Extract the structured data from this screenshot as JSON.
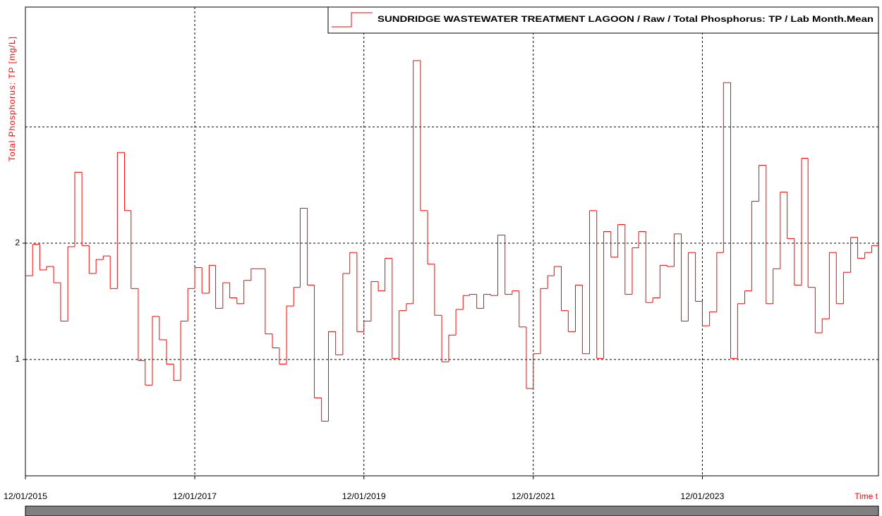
{
  "chart_data": {
    "type": "step",
    "y_label": "Total Phosphorus: TP [mg/L]",
    "x_label": "Time t",
    "x": [
      "2015-12-01",
      "2016-01-01",
      "2016-02-01",
      "2016-03-01",
      "2016-04-01",
      "2016-05-01",
      "2016-06-01",
      "2016-07-01",
      "2016-08-01",
      "2016-09-01",
      "2016-10-01",
      "2016-11-01",
      "2016-12-01",
      "2017-01-01",
      "2017-02-01",
      "2017-03-01",
      "2017-04-01",
      "2017-05-01",
      "2017-06-01",
      "2017-07-01",
      "2017-08-01",
      "2017-09-01",
      "2017-10-01",
      "2017-11-01",
      "2017-12-01",
      "2018-01-01",
      "2018-02-01",
      "2018-03-01",
      "2018-04-01",
      "2018-05-01",
      "2018-06-01",
      "2018-07-01",
      "2018-08-01",
      "2018-09-01",
      "2018-10-01",
      "2018-11-01",
      "2018-12-01",
      "2019-01-01",
      "2019-02-01",
      "2019-03-01",
      "2019-04-01",
      "2019-05-01",
      "2019-06-01",
      "2019-07-01",
      "2019-08-01",
      "2019-09-01",
      "2019-10-01",
      "2019-11-01",
      "2019-12-01",
      "2020-01-01",
      "2020-02-01",
      "2020-03-01",
      "2020-04-01",
      "2020-05-01",
      "2020-06-01",
      "2020-07-01",
      "2020-08-01",
      "2020-09-01",
      "2020-10-01",
      "2020-11-01",
      "2020-12-01",
      "2021-01-01",
      "2021-02-01",
      "2021-03-01",
      "2021-04-01",
      "2021-05-01",
      "2021-06-01",
      "2021-07-01",
      "2021-08-01",
      "2021-09-01",
      "2021-10-01",
      "2021-11-01",
      "2021-12-01",
      "2022-01-01",
      "2022-02-01",
      "2022-03-01",
      "2022-04-01",
      "2022-05-01",
      "2022-06-01",
      "2022-07-01",
      "2022-08-01",
      "2022-09-01",
      "2022-10-01",
      "2022-11-01",
      "2022-12-01",
      "2023-01-01",
      "2023-02-01",
      "2023-03-01",
      "2023-04-01",
      "2023-05-01",
      "2023-06-01",
      "2023-07-01",
      "2023-08-01",
      "2023-09-01",
      "2023-10-01",
      "2023-11-01",
      "2023-12-01",
      "2024-01-01",
      "2024-02-01",
      "2024-03-01",
      "2024-04-01",
      "2024-05-01",
      "2024-06-01",
      "2024-07-01",
      "2024-08-01",
      "2024-09-01",
      "2024-10-01",
      "2024-11-01",
      "2024-12-01",
      "2025-01-01",
      "2025-02-01",
      "2025-03-01",
      "2025-04-01",
      "2025-05-01",
      "2025-06-01",
      "2025-07-01",
      "2025-08-01",
      "2025-09-01",
      "2025-10-01",
      "2025-11-01",
      "2025-12-01"
    ],
    "series": [
      {
        "name": "SUNDRIDGE WASTEWATER TREATMENT LAGOON / Raw / Total Phosphorus: TP / Lab Month.Mean",
        "color": "#ff0000",
        "values": [
          1.72,
          1.99,
          1.77,
          1.8,
          1.66,
          1.33,
          1.97,
          2.61,
          1.98,
          1.74,
          1.86,
          1.89,
          1.61,
          2.78,
          2.28,
          1.61,
          0.99,
          0.78,
          1.37,
          1.17,
          0.96,
          0.82,
          1.33,
          1.61,
          1.79,
          1.57,
          1.81,
          1.44,
          1.66,
          1.53,
          1.48,
          1.68,
          1.78,
          1.78,
          1.22,
          1.1,
          0.96,
          1.46,
          1.62,
          2.3,
          1.64,
          0.67,
          0.47,
          1.24,
          1.04,
          1.74,
          1.92,
          1.24,
          1.33,
          1.67,
          1.59,
          1.87,
          1.01,
          1.42,
          1.48,
          3.57,
          2.28,
          1.82,
          1.38,
          0.98,
          1.21,
          1.43,
          1.55,
          1.56,
          1.44,
          1.56,
          1.55,
          2.07,
          1.56,
          1.59,
          1.28,
          0.75,
          1.05,
          1.61,
          1.72,
          1.8,
          1.42,
          1.24,
          1.64,
          1.05,
          2.28,
          1.01,
          2.1,
          1.88,
          2.16,
          1.56,
          1.96,
          2.1,
          1.49,
          1.53,
          1.81,
          1.8,
          2.08,
          1.33,
          1.92,
          1.5,
          1.29,
          1.41,
          1.92,
          3.38,
          1.01,
          1.48,
          1.59,
          2.36,
          2.67,
          1.48,
          1.78,
          2.44,
          2.04,
          1.64,
          2.73,
          1.62,
          1.23,
          1.35,
          1.92,
          1.48,
          1.75,
          2.05,
          1.87,
          1.92,
          1.98
        ]
      }
    ],
    "xlim": [
      "2015-12-01",
      "2025-12-30"
    ],
    "xticks": [
      {
        "value": "2015-12-01",
        "label": "12/01/2015"
      },
      {
        "value": "2017-12-01",
        "label": "12/01/2017"
      },
      {
        "value": "2019-12-01",
        "label": "12/01/2019"
      },
      {
        "value": "2021-12-01",
        "label": "12/01/2021"
      },
      {
        "value": "2023-12-01",
        "label": "12/01/2023"
      }
    ],
    "ylim": [
      0,
      4.03
    ],
    "yticks": [
      1,
      2
    ],
    "grid_lines": [
      1,
      2,
      3
    ],
    "grid": true,
    "legend": "top-right"
  }
}
